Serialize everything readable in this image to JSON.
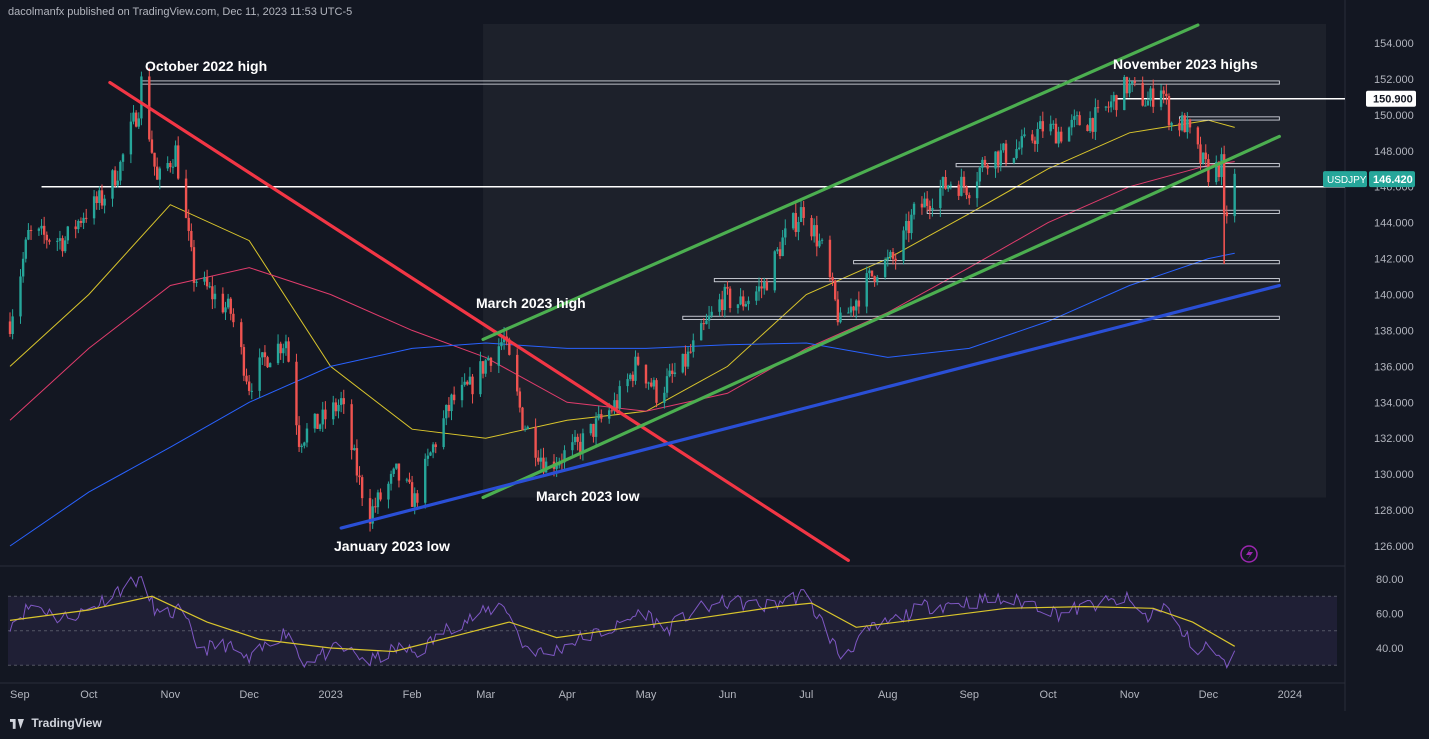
{
  "header": {
    "published": "dacolmanfx published on TradingView.com, Dec 11, 2023 11:53 UTC-5"
  },
  "footer": {
    "brand": "TradingView"
  },
  "colors": {
    "background": "#131722",
    "up": "#26a69a",
    "down": "#ef5350",
    "ma50": "#d9c52c",
    "ma100": "#e03c6c",
    "ma200": "#2962ff",
    "channel": "#4caf50",
    "trend_red": "#f23645",
    "support_blue": "#2a4fd6",
    "rsi": "#7e57c2",
    "rsi_ma": "#d9c52c"
  },
  "chart_data": [
    {
      "type": "candlestick",
      "symbol": "USDJPY",
      "last_price": "146.420",
      "highlight_level": "150.900",
      "y_ticks": [
        "154.000",
        "152.000",
        "150.000",
        "148.000",
        "146.000",
        "144.000",
        "142.000",
        "140.000",
        "138.000",
        "136.000",
        "134.000",
        "132.000",
        "130.000",
        "128.000",
        "126.000"
      ],
      "x_ticks": [
        "Sep",
        "Oct",
        "Nov",
        "Dec",
        "2023",
        "Feb",
        "Mar",
        "Apr",
        "May",
        "Jun",
        "Jul",
        "Aug",
        "Sep",
        "Oct",
        "Nov",
        "Dec",
        "2024"
      ],
      "ylim": [
        125,
        155
      ],
      "annotations": [
        {
          "text": "October 2022 high"
        },
        {
          "text": "November 2023 highs"
        },
        {
          "text": "March 2023 high"
        },
        {
          "text": "March 2023 low"
        },
        {
          "text": "January 2023 low"
        }
      ],
      "price_path": [
        [
          "2022-09-01",
          138.5
        ],
        [
          "2022-09-08",
          143.3
        ],
        [
          "2022-09-15",
          143.2
        ],
        [
          "2022-09-22",
          143.0
        ],
        [
          "2022-09-29",
          144.5
        ],
        [
          "2022-10-06",
          145.3
        ],
        [
          "2022-10-13",
          147.2
        ],
        [
          "2022-10-20",
          150.5
        ],
        [
          "2022-10-21",
          151.8
        ],
        [
          "2022-10-27",
          146.2
        ],
        [
          "2022-11-03",
          148.0
        ],
        [
          "2022-11-10",
          141.0
        ],
        [
          "2022-11-17",
          140.0
        ],
        [
          "2022-11-24",
          139.0
        ],
        [
          "2022-12-01",
          135.0
        ],
        [
          "2022-12-08",
          136.6
        ],
        [
          "2022-12-15",
          137.5
        ],
        [
          "2022-12-20",
          132.0
        ],
        [
          "2022-12-29",
          133.0
        ],
        [
          "2023-01-05",
          134.0
        ],
        [
          "2023-01-12",
          129.5
        ],
        [
          "2023-01-16",
          127.8
        ],
        [
          "2023-01-26",
          130.0
        ],
        [
          "2023-02-02",
          128.5
        ],
        [
          "2023-02-09",
          131.5
        ],
        [
          "2023-02-16",
          134.0
        ],
        [
          "2023-02-23",
          134.8
        ],
        [
          "2023-03-02",
          136.5
        ],
        [
          "2023-03-08",
          137.5
        ],
        [
          "2023-03-15",
          133.0
        ],
        [
          "2023-03-24",
          130.5
        ],
        [
          "2023-04-05",
          131.5
        ],
        [
          "2023-04-20",
          134.0
        ],
        [
          "2023-04-28",
          136.3
        ],
        [
          "2023-05-05",
          134.5
        ],
        [
          "2023-05-15",
          136.0
        ],
        [
          "2023-05-30",
          139.8
        ],
        [
          "2023-06-06",
          139.5
        ],
        [
          "2023-06-15",
          140.5
        ],
        [
          "2023-06-22",
          143.0
        ],
        [
          "2023-06-30",
          144.8
        ],
        [
          "2023-07-07",
          142.5
        ],
        [
          "2023-07-14",
          138.3
        ],
        [
          "2023-07-21",
          140.0
        ],
        [
          "2023-07-28",
          141.5
        ],
        [
          "2023-08-04",
          142.0
        ],
        [
          "2023-08-11",
          144.5
        ],
        [
          "2023-08-18",
          145.5
        ],
        [
          "2023-08-25",
          146.3
        ],
        [
          "2023-09-01",
          146.0
        ],
        [
          "2023-09-08",
          147.7
        ],
        [
          "2023-09-15",
          147.8
        ],
        [
          "2023-09-22",
          148.3
        ],
        [
          "2023-09-29",
          149.3
        ],
        [
          "2023-10-06",
          149.0
        ],
        [
          "2023-10-13",
          149.6
        ],
        [
          "2023-10-20",
          149.8
        ],
        [
          "2023-10-31",
          151.6
        ],
        [
          "2023-11-08",
          150.7
        ],
        [
          "2023-11-13",
          151.7
        ],
        [
          "2023-11-17",
          149.5
        ],
        [
          "2023-11-22",
          149.5
        ],
        [
          "2023-11-28",
          147.5
        ],
        [
          "2023-12-01",
          146.8
        ],
        [
          "2023-12-06",
          147.2
        ],
        [
          "2023-12-07",
          144.0
        ],
        [
          "2023-12-11",
          146.4
        ]
      ],
      "moving_averages": [
        {
          "period": 50,
          "path": [
            [
              "2022-09-01",
              136.0
            ],
            [
              "2022-10-01",
              140.0
            ],
            [
              "2022-11-01",
              145.0
            ],
            [
              "2022-12-01",
              143.0
            ],
            [
              "2023-01-01",
              136.0
            ],
            [
              "2023-02-01",
              132.5
            ],
            [
              "2023-03-01",
              132.0
            ],
            [
              "2023-04-01",
              133.0
            ],
            [
              "2023-05-01",
              133.5
            ],
            [
              "2023-06-01",
              136.0
            ],
            [
              "2023-07-01",
              140.0
            ],
            [
              "2023-08-01",
              142.0
            ],
            [
              "2023-09-01",
              144.5
            ],
            [
              "2023-10-01",
              147.0
            ],
            [
              "2023-11-01",
              149.0
            ],
            [
              "2023-12-01",
              149.7
            ],
            [
              "2023-12-11",
              149.3
            ]
          ]
        },
        {
          "period": 100,
          "path": [
            [
              "2022-09-01",
              133.0
            ],
            [
              "2022-10-01",
              137.0
            ],
            [
              "2022-11-01",
              140.5
            ],
            [
              "2022-12-01",
              141.5
            ],
            [
              "2023-01-01",
              140.0
            ],
            [
              "2023-02-01",
              138.0
            ],
            [
              "2023-03-01",
              136.5
            ],
            [
              "2023-04-01",
              134.0
            ],
            [
              "2023-05-01",
              133.5
            ],
            [
              "2023-06-01",
              134.5
            ],
            [
              "2023-07-01",
              137.0
            ],
            [
              "2023-08-01",
              139.0
            ],
            [
              "2023-09-01",
              141.5
            ],
            [
              "2023-10-01",
              144.0
            ],
            [
              "2023-11-01",
              146.0
            ],
            [
              "2023-12-01",
              147.2
            ],
            [
              "2023-12-11",
              147.4
            ]
          ]
        },
        {
          "period": 200,
          "path": [
            [
              "2022-09-01",
              126.0
            ],
            [
              "2022-10-01",
              129.0
            ],
            [
              "2022-11-01",
              131.5
            ],
            [
              "2022-12-01",
              134.0
            ],
            [
              "2023-01-01",
              136.0
            ],
            [
              "2023-02-01",
              137.0
            ],
            [
              "2023-03-01",
              137.3
            ],
            [
              "2023-04-01",
              137.0
            ],
            [
              "2023-05-01",
              137.0
            ],
            [
              "2023-06-01",
              137.2
            ],
            [
              "2023-07-01",
              137.3
            ],
            [
              "2023-08-01",
              136.5
            ],
            [
              "2023-09-01",
              137.0
            ],
            [
              "2023-10-01",
              138.5
            ],
            [
              "2023-11-01",
              140.5
            ],
            [
              "2023-12-01",
              142.0
            ],
            [
              "2023-12-11",
              142.3
            ]
          ]
        }
      ],
      "horizontal_levels": [
        {
          "price": 151.8,
          "from": "2022-10-21",
          "to": "2023-12-28"
        },
        {
          "price": 150.9,
          "from": "2023-10-27",
          "to": "2023-12-28"
        },
        {
          "price": 149.8,
          "from": "2023-11-20",
          "to": "2023-12-28"
        },
        {
          "price": 147.2,
          "from": "2023-08-27",
          "to": "2023-12-28"
        },
        {
          "price": 146.0,
          "from": "2022-09-13",
          "to": "2023-12-28"
        },
        {
          "price": 144.6,
          "from": "2023-08-16",
          "to": "2023-12-28"
        },
        {
          "price": 141.8,
          "from": "2023-07-19",
          "to": "2023-12-28"
        },
        {
          "price": 140.8,
          "from": "2023-05-27",
          "to": "2023-12-28"
        },
        {
          "price": 138.7,
          "from": "2023-05-15",
          "to": "2023-12-28"
        }
      ],
      "trendlines": [
        {
          "name": "descending-resistance",
          "from": [
            "2022-10-09",
            151.8
          ],
          "to": [
            "2023-07-17",
            125.2
          ]
        },
        {
          "name": "channel-upper",
          "from": [
            "2023-02-28",
            137.5
          ],
          "to": [
            "2023-11-27",
            155.0
          ]
        },
        {
          "name": "channel-lower",
          "from": [
            "2023-02-28",
            128.7
          ],
          "to": [
            "2023-12-28",
            148.8
          ]
        },
        {
          "name": "ascending-support",
          "from": [
            "2023-01-05",
            127.0
          ],
          "to": [
            "2023-12-28",
            140.5
          ]
        }
      ]
    },
    {
      "type": "line",
      "indicator": "RSI",
      "y_ticks": [
        "80.00",
        "60.00",
        "40.00"
      ],
      "ylim": [
        30,
        84
      ],
      "rsi": [
        [
          "2022-09-01",
          54
        ],
        [
          "2022-09-10",
          66
        ],
        [
          "2022-09-20",
          57
        ],
        [
          "2022-10-01",
          62
        ],
        [
          "2022-10-10",
          72
        ],
        [
          "2022-10-20",
          80
        ],
        [
          "2022-10-28",
          58
        ],
        [
          "2022-11-05",
          62
        ],
        [
          "2022-11-12",
          39
        ],
        [
          "2022-11-22",
          42
        ],
        [
          "2022-12-01",
          32
        ],
        [
          "2022-12-10",
          45
        ],
        [
          "2022-12-16",
          50
        ],
        [
          "2022-12-21",
          32
        ],
        [
          "2023-01-05",
          40
        ],
        [
          "2023-01-16",
          32
        ],
        [
          "2023-01-27",
          40
        ],
        [
          "2023-02-03",
          37
        ],
        [
          "2023-02-15",
          52
        ],
        [
          "2023-02-25",
          58
        ],
        [
          "2023-03-08",
          66
        ],
        [
          "2023-03-15",
          42
        ],
        [
          "2023-03-24",
          36
        ],
        [
          "2023-04-05",
          45
        ],
        [
          "2023-04-20",
          52
        ],
        [
          "2023-04-30",
          62
        ],
        [
          "2023-05-08",
          50
        ],
        [
          "2023-05-20",
          62
        ],
        [
          "2023-06-02",
          67
        ],
        [
          "2023-06-15",
          64
        ],
        [
          "2023-06-30",
          71
        ],
        [
          "2023-07-07",
          55
        ],
        [
          "2023-07-14",
          35
        ],
        [
          "2023-07-25",
          50
        ],
        [
          "2023-08-05",
          57
        ],
        [
          "2023-08-15",
          64
        ],
        [
          "2023-08-28",
          66
        ],
        [
          "2023-09-10",
          68
        ],
        [
          "2023-09-25",
          66
        ],
        [
          "2023-10-05",
          60
        ],
        [
          "2023-10-15",
          64
        ],
        [
          "2023-10-31",
          68
        ],
        [
          "2023-11-08",
          57
        ],
        [
          "2023-11-14",
          66
        ],
        [
          "2023-11-20",
          50
        ],
        [
          "2023-11-28",
          38
        ],
        [
          "2023-12-01",
          42
        ],
        [
          "2023-12-07",
          30
        ],
        [
          "2023-12-11",
          40
        ]
      ],
      "rsi_ma": [
        [
          "2022-09-01",
          56
        ],
        [
          "2022-10-01",
          62
        ],
        [
          "2022-10-25",
          70
        ],
        [
          "2022-11-15",
          55
        ],
        [
          "2022-12-05",
          45
        ],
        [
          "2023-01-01",
          40
        ],
        [
          "2023-01-25",
          38
        ],
        [
          "2023-02-20",
          48
        ],
        [
          "2023-03-10",
          55
        ],
        [
          "2023-03-28",
          46
        ],
        [
          "2023-04-25",
          52
        ],
        [
          "2023-05-20",
          57
        ],
        [
          "2023-06-20",
          64
        ],
        [
          "2023-07-03",
          66
        ],
        [
          "2023-07-20",
          52
        ],
        [
          "2023-08-15",
          57
        ],
        [
          "2023-09-15",
          63
        ],
        [
          "2023-10-15",
          64
        ],
        [
          "2023-11-10",
          63
        ],
        [
          "2023-11-25",
          55
        ],
        [
          "2023-12-11",
          41
        ]
      ]
    }
  ]
}
